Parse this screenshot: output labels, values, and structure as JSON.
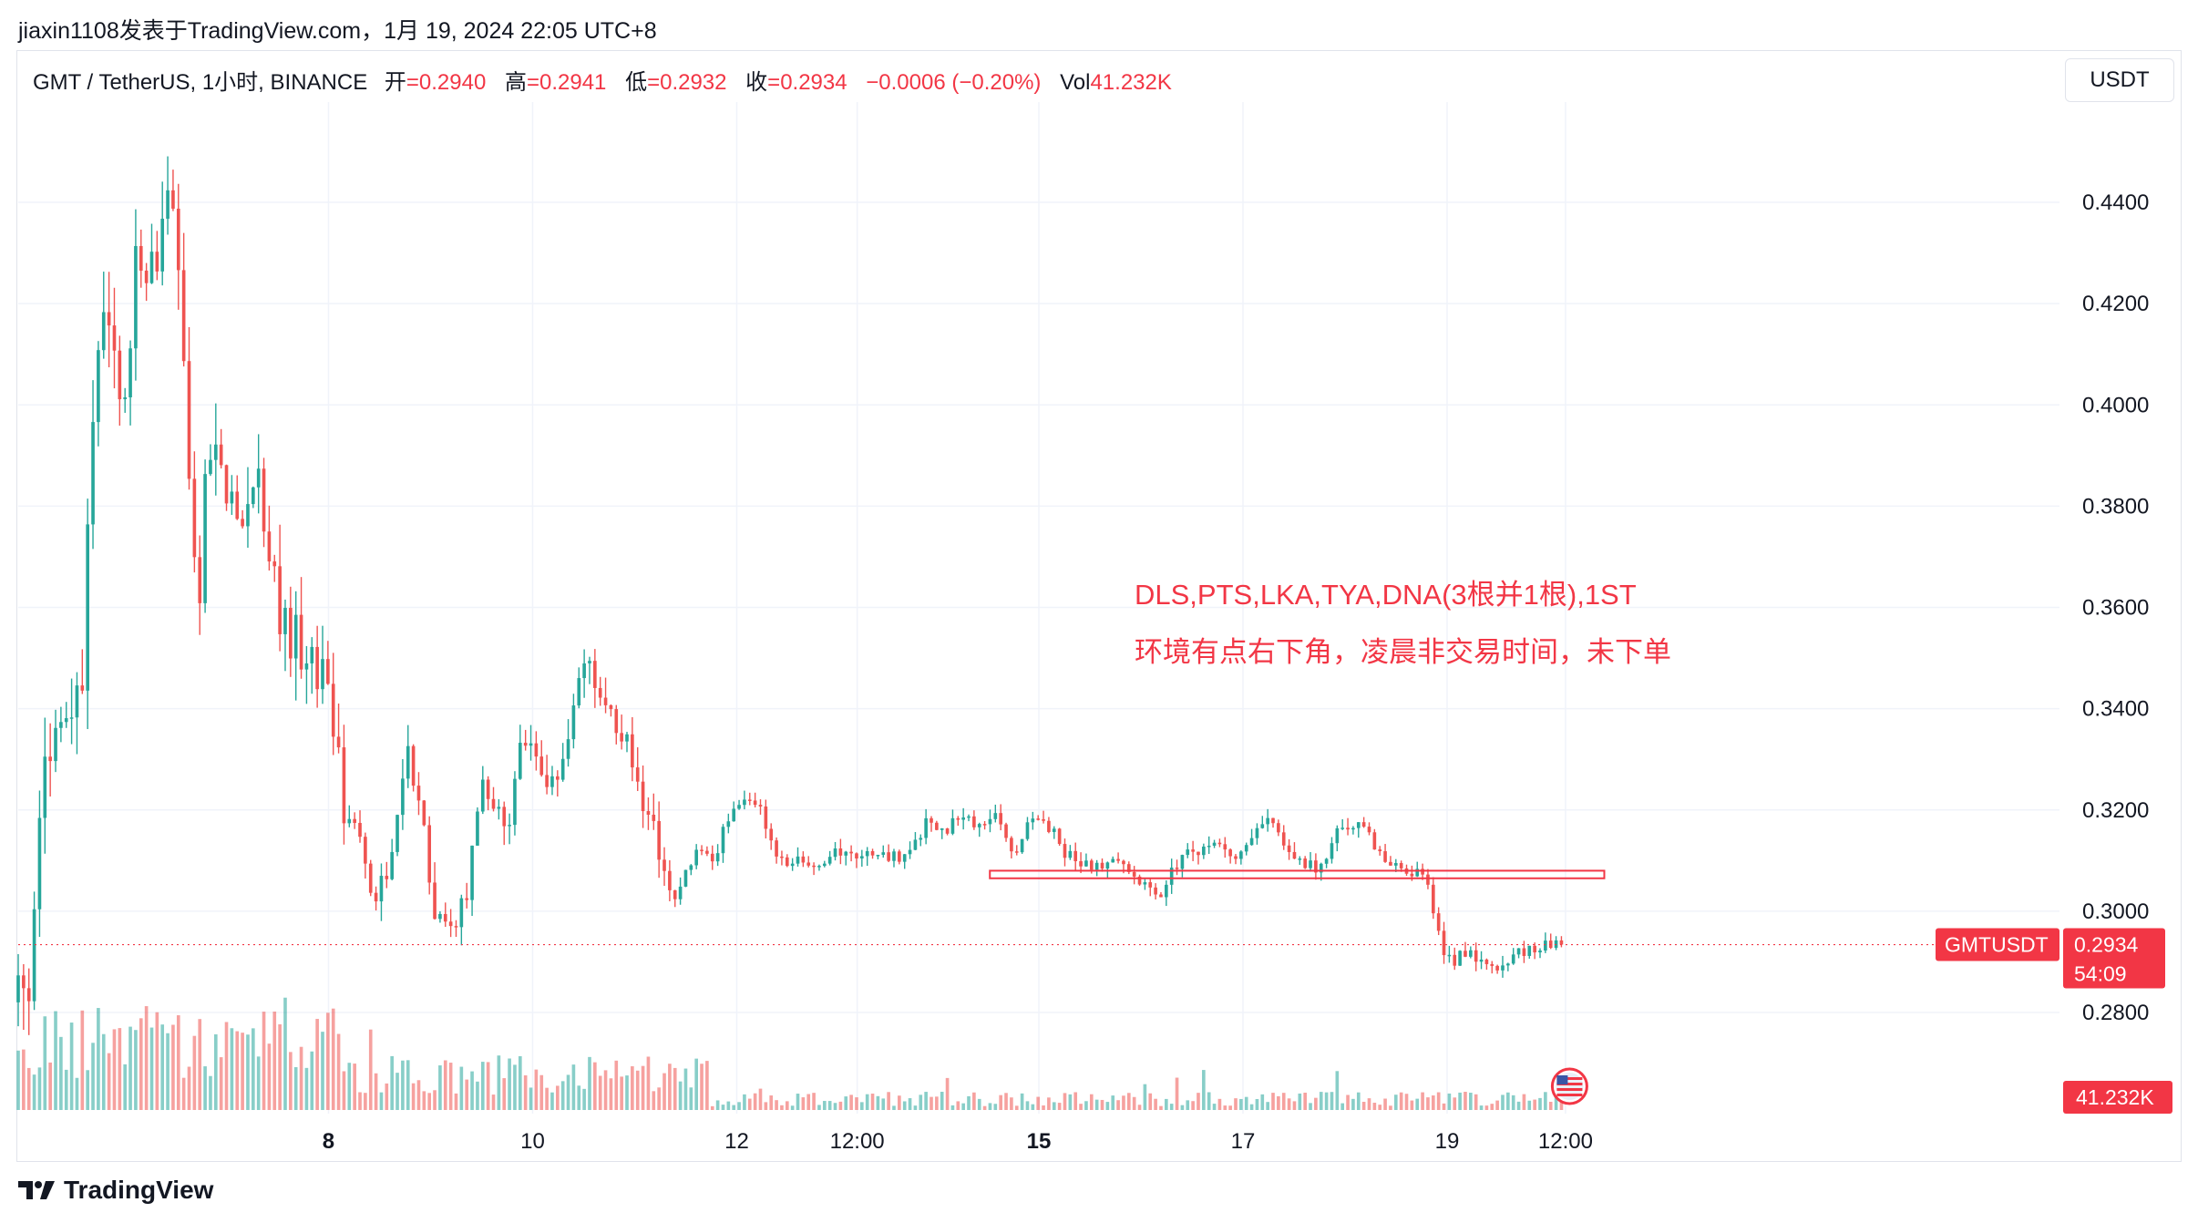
{
  "header": {
    "publisher_line": "jiaxin1108发表于TradingView.com，1月 19, 2024 22:05 UTC+8"
  },
  "legend": {
    "symbol": "GMT / TetherUS, 1小时, BINANCE",
    "open_label": "开",
    "open": "=0.2940",
    "high_label": "高",
    "high": "=0.2941",
    "low_label": "低",
    "low": "=0.2932",
    "close_label": "收",
    "close": "=0.2934",
    "change": "−0.0006 (−0.20%)",
    "vol_label": "Vol",
    "vol": "41.232K"
  },
  "currency_button": "USDT",
  "brand": "TradingView",
  "colors": {
    "up": "#26a69a",
    "down": "#ef5350",
    "accent": "#f23645",
    "grid": "#f0f3fa"
  },
  "chart_data": {
    "type": "candlestick",
    "x_ticks": [
      {
        "label": "8",
        "bold": true,
        "t": 0.152
      },
      {
        "label": "10",
        "bold": false,
        "t": 0.252
      },
      {
        "label": "12",
        "bold": false,
        "t": 0.352
      },
      {
        "label": "12:00",
        "bold": false,
        "t": 0.411
      },
      {
        "label": "15",
        "bold": true,
        "t": 0.5
      },
      {
        "label": "17",
        "bold": false,
        "t": 0.6
      },
      {
        "label": "19",
        "bold": false,
        "t": 0.7
      },
      {
        "label": "12:00",
        "bold": false,
        "t": 0.758
      }
    ],
    "y_ticks": [
      "0.4400",
      "0.4200",
      "0.4000",
      "0.3800",
      "0.3600",
      "0.3400",
      "0.3200",
      "0.3000",
      "0.2800"
    ],
    "ylim": [
      0.2753,
      0.452
    ],
    "price_path": [
      [
        0.0,
        0.282
      ],
      [
        0.006,
        0.285
      ],
      [
        0.012,
        0.33
      ],
      [
        0.022,
        0.335
      ],
      [
        0.032,
        0.345
      ],
      [
        0.036,
        0.4
      ],
      [
        0.044,
        0.42
      ],
      [
        0.052,
        0.4
      ],
      [
        0.058,
        0.43
      ],
      [
        0.066,
        0.425
      ],
      [
        0.072,
        0.44
      ],
      [
        0.078,
        0.43
      ],
      [
        0.082,
        0.4
      ],
      [
        0.088,
        0.35
      ],
      [
        0.092,
        0.395
      ],
      [
        0.1,
        0.385
      ],
      [
        0.11,
        0.38
      ],
      [
        0.118,
        0.385
      ],
      [
        0.124,
        0.365
      ],
      [
        0.132,
        0.355
      ],
      [
        0.14,
        0.353
      ],
      [
        0.152,
        0.345
      ],
      [
        0.16,
        0.32
      ],
      [
        0.17,
        0.31
      ],
      [
        0.176,
        0.302
      ],
      [
        0.184,
        0.315
      ],
      [
        0.19,
        0.333
      ],
      [
        0.198,
        0.32
      ],
      [
        0.204,
        0.3
      ],
      [
        0.212,
        0.298
      ],
      [
        0.22,
        0.302
      ],
      [
        0.226,
        0.325
      ],
      [
        0.232,
        0.32
      ],
      [
        0.24,
        0.318
      ],
      [
        0.248,
        0.335
      ],
      [
        0.256,
        0.327
      ],
      [
        0.262,
        0.325
      ],
      [
        0.27,
        0.335
      ],
      [
        0.276,
        0.353
      ],
      [
        0.282,
        0.345
      ],
      [
        0.29,
        0.338
      ],
      [
        0.298,
        0.335
      ],
      [
        0.306,
        0.32
      ],
      [
        0.312,
        0.316
      ],
      [
        0.32,
        0.3
      ],
      [
        0.328,
        0.308
      ],
      [
        0.334,
        0.312
      ],
      [
        0.34,
        0.31
      ],
      [
        0.348,
        0.318
      ],
      [
        0.356,
        0.322
      ],
      [
        0.362,
        0.322
      ],
      [
        0.37,
        0.312
      ],
      [
        0.378,
        0.31
      ],
      [
        0.39,
        0.309
      ],
      [
        0.4,
        0.312
      ],
      [
        0.41,
        0.31
      ],
      [
        0.422,
        0.312
      ],
      [
        0.434,
        0.31
      ],
      [
        0.446,
        0.318
      ],
      [
        0.454,
        0.316
      ],
      [
        0.46,
        0.318
      ],
      [
        0.47,
        0.317
      ],
      [
        0.478,
        0.32
      ],
      [
        0.488,
        0.312
      ],
      [
        0.496,
        0.318
      ],
      [
        0.506,
        0.316
      ],
      [
        0.514,
        0.311
      ],
      [
        0.526,
        0.308
      ],
      [
        0.536,
        0.31
      ],
      [
        0.548,
        0.306
      ],
      [
        0.56,
        0.304
      ],
      [
        0.57,
        0.311
      ],
      [
        0.582,
        0.313
      ],
      [
        0.596,
        0.311
      ],
      [
        0.612,
        0.318
      ],
      [
        0.626,
        0.311
      ],
      [
        0.638,
        0.308
      ],
      [
        0.648,
        0.317
      ],
      [
        0.658,
        0.318
      ],
      [
        0.668,
        0.31
      ],
      [
        0.678,
        0.309
      ],
      [
        0.69,
        0.306
      ],
      [
        0.7,
        0.29
      ],
      [
        0.712,
        0.292
      ],
      [
        0.724,
        0.288
      ],
      [
        0.736,
        0.292
      ],
      [
        0.748,
        0.294
      ],
      [
        0.756,
        0.2935
      ]
    ],
    "support_band": {
      "from_t": 0.476,
      "to_t": 0.777,
      "low": 0.3065,
      "high": 0.308
    },
    "annotation_lines": [
      "DLS,PTS,LKA,TYA,DNA(3根并1根),1ST",
      "环境有点右下角，凌晨非交易时间，未下单"
    ],
    "last_price": {
      "symbol": "GMTUSDT",
      "price": "0.2934",
      "value": 0.2934,
      "countdown": "54:09"
    },
    "volume_label": "41.232K"
  }
}
